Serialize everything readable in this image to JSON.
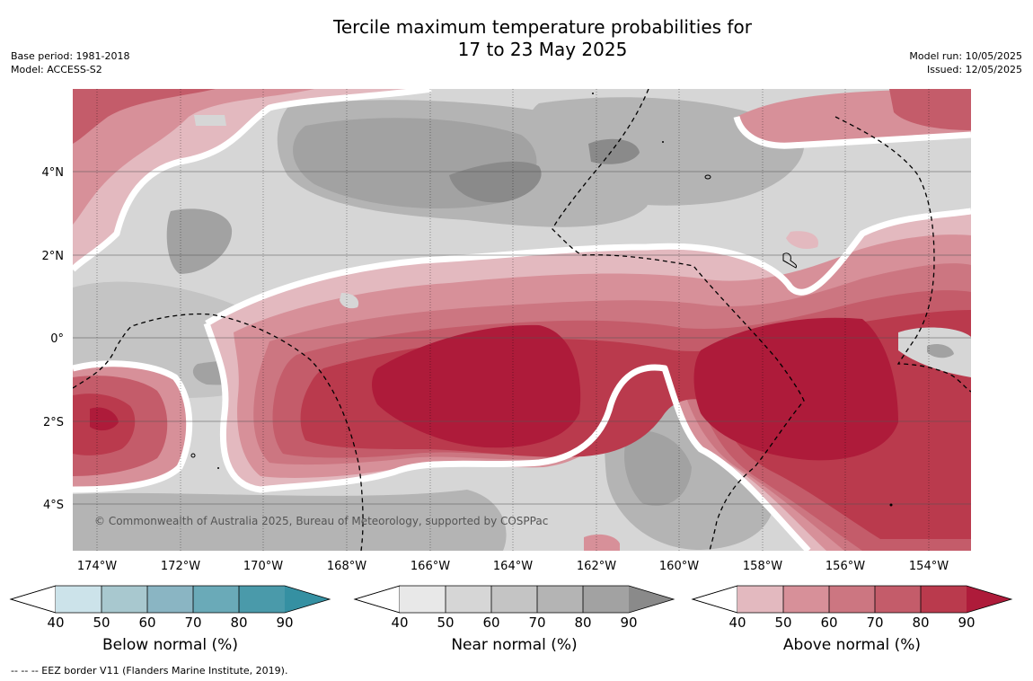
{
  "title": {
    "line1": "Tercile maximum temperature probabilities for",
    "line2": "17 to 23 May 2025"
  },
  "meta_left": {
    "base_period": "Base period: 1981-2018",
    "model": "Model: ACCESS-S2"
  },
  "meta_right": {
    "model_run": "Model run: 10/05/2025",
    "issued": "Issued: 12/05/2025"
  },
  "map": {
    "lat_labels": [
      "4°N",
      "2°N",
      "0°",
      "2°S",
      "4°S"
    ],
    "lon_labels": [
      "174°W",
      "172°W",
      "170°W",
      "168°W",
      "166°W",
      "164°W",
      "162°W",
      "160°W",
      "158°W",
      "156°W",
      "154°W"
    ],
    "credit": "© Commonwealth of Australia 2025, Bureau of Meteorology, supported by COSPPac"
  },
  "colorbars": [
    {
      "label": "Below normal (%)",
      "ticks": [
        "40",
        "50",
        "60",
        "70",
        "80",
        "90"
      ],
      "colors": [
        "#cce3ea",
        "#a8c8cf",
        "#8ab5c3",
        "#6aaab8",
        "#4a9aaa",
        "#3590a2"
      ]
    },
    {
      "label": "Near normal (%)",
      "ticks": [
        "40",
        "50",
        "60",
        "70",
        "80",
        "90"
      ],
      "colors": [
        "#e8e8e8",
        "#d6d6d6",
        "#c4c4c4",
        "#b4b4b4",
        "#a2a2a2",
        "#8a8a8a"
      ]
    },
    {
      "label": "Above normal (%)",
      "ticks": [
        "40",
        "50",
        "60",
        "70",
        "80",
        "90"
      ],
      "colors": [
        "#e3b9bf",
        "#d79099",
        "#cc7681",
        "#c45c6a",
        "#ba3a4d",
        "#ae1b3a"
      ]
    }
  ],
  "footnote": "--  --  -- EEZ border V11 (Flanders Marine Institute, 2019)."
}
